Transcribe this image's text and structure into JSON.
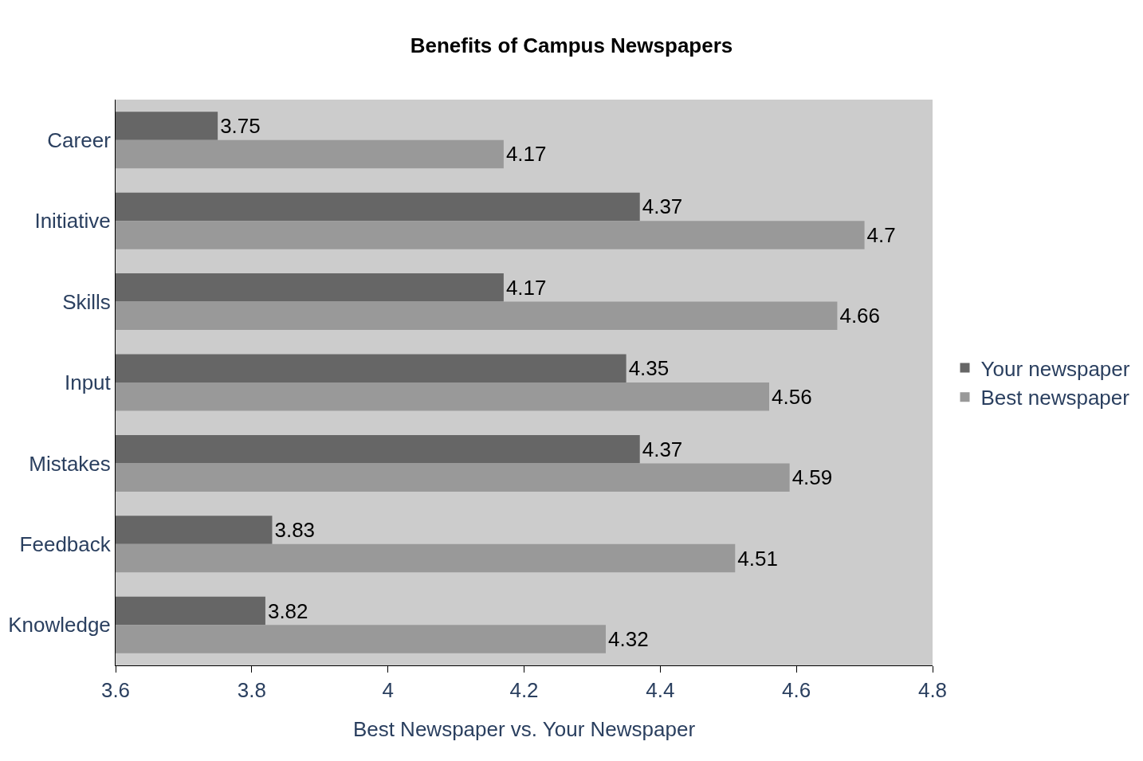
{
  "chart_data": {
    "type": "bar",
    "orientation": "horizontal",
    "title": "Benefits of Campus Newspapers",
    "xlabel": "Best Newspaper vs. Your Newspaper",
    "categories": [
      "Career",
      "Initiative",
      "Skills",
      "Input",
      "Mistakes",
      "Feedback",
      "Knowledge"
    ],
    "series": [
      {
        "name": "Your newspaper",
        "color": "#666666",
        "values": [
          3.75,
          4.37,
          4.17,
          4.35,
          4.37,
          3.83,
          3.82
        ]
      },
      {
        "name": "Best newspaper",
        "color": "#999999",
        "values": [
          4.17,
          4.7,
          4.66,
          4.56,
          4.59,
          4.51,
          4.32
        ]
      }
    ],
    "xlim": [
      3.6,
      4.8
    ],
    "xticks": [
      3.6,
      3.8,
      4,
      4.2,
      4.4,
      4.6,
      4.8
    ],
    "data_labels": true,
    "legend": "right",
    "grid": false
  }
}
